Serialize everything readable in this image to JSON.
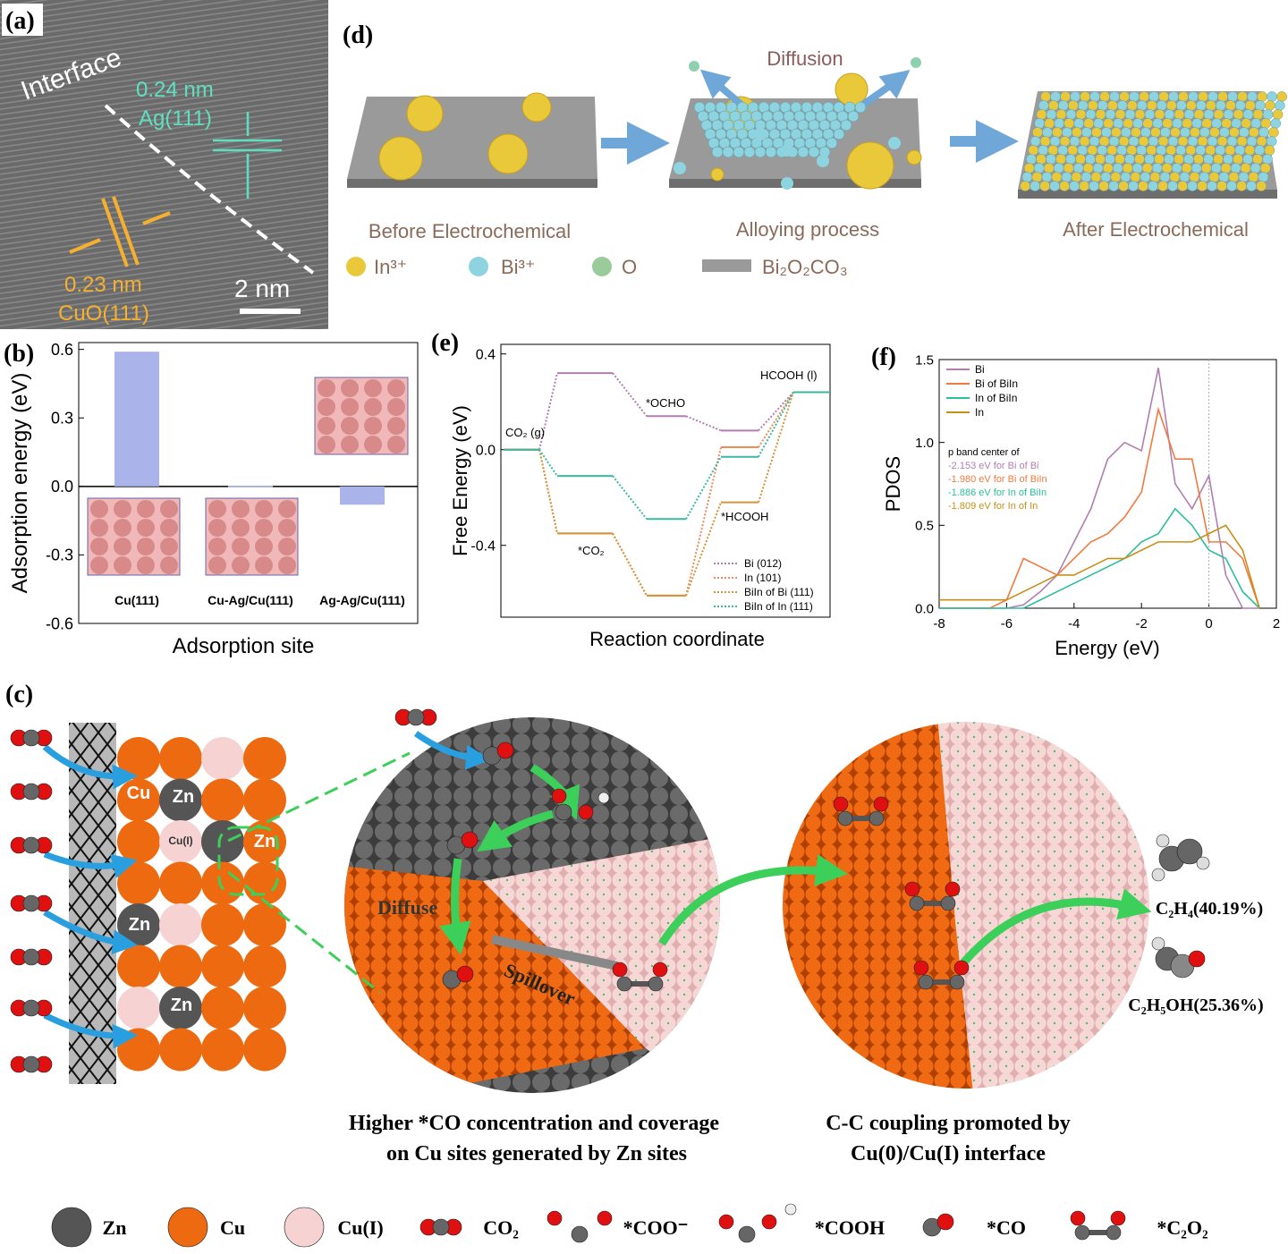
{
  "panel_a": {
    "label": "(a)",
    "interface": "Interface",
    "spacing_ag": "0.24 nm",
    "plane_ag": "Ag(111)",
    "spacing_cuo": "0.23 nm",
    "plane_cuo": "CuO(111)",
    "scale": "2 nm"
  },
  "panel_d": {
    "label": "(d)",
    "diffusion": "Diffusion",
    "stages": [
      "Before Electrochemical",
      "Alloying process",
      "After Electrochemical"
    ],
    "legend": [
      "In³⁺",
      "Bi³⁺",
      "O",
      "Bi₂O₂CO₃"
    ]
  },
  "chart_data": [
    {
      "label": "(b)",
      "type": "bar",
      "ylabel": "Adsorption energy (eV)",
      "xlabel": "Adsorption site",
      "categories": [
        "Cu(111)",
        "Cu-Ag/Cu(111)",
        "Ag-Ag/Cu(111)"
      ],
      "values": [
        0.59,
        0.003,
        -0.08
      ],
      "color": "#aab4ea",
      "ylim": [
        -0.6,
        0.63
      ],
      "yticks": [
        0.6,
        0.3,
        {
          "value": 0,
          "label": "0.0"
        },
        -0.3,
        -0.6
      ]
    },
    {
      "label": "(e)",
      "type": "step",
      "ylabel": "Free Energy (eV)",
      "xlabel": "Reaction coordinate",
      "annotations": [
        "CO₂ (g)",
        "*CO₂",
        "*OCHO",
        "*HCOOH",
        "HCOOH (l)"
      ],
      "series": [
        {
          "name": "Bi (012)",
          "color": "#b07fb0",
          "values": [
            0,
            0.32,
            0.14,
            0.08,
            0.24
          ]
        },
        {
          "name": "In (101)",
          "color": "#f08a5a",
          "values": [
            0,
            -0.35,
            -0.61,
            0.01,
            0.24
          ]
        },
        {
          "name": "BiIn of Bi (111)",
          "color": "#d4943a",
          "values": [
            0,
            -0.35,
            -0.61,
            -0.22,
            0.24
          ]
        },
        {
          "name": "BiIn of In (111)",
          "color": "#3cb8a0",
          "values": [
            0,
            -0.11,
            -0.29,
            -0.03,
            0.24
          ]
        }
      ],
      "ylim": [
        -0.7,
        0.44
      ],
      "yticks": [
        0.4,
        {
          "value": 0,
          "label": "0.0"
        },
        -0.4
      ]
    },
    {
      "label": "(f)",
      "type": "line",
      "ylabel": "PDOS",
      "xlabel": "Energy (eV)",
      "x": [
        -8,
        -7.5,
        -7,
        -6.5,
        -6,
        -5.5,
        -5,
        -4.5,
        -4,
        -3.5,
        -3,
        -2.5,
        -2,
        -1.5,
        -1,
        -0.5,
        0,
        0.5,
        1,
        1.5
      ],
      "series": [
        {
          "name": "Bi",
          "color": "#b07fb0",
          "values": [
            0,
            0,
            0,
            0,
            0,
            0.02,
            0.1,
            0.2,
            0.4,
            0.6,
            0.9,
            1.0,
            0.95,
            1.45,
            0.75,
            0.6,
            0.8,
            0.2,
            0,
            0
          ]
        },
        {
          "name": "Bi of BiIn",
          "color": "#f07a40",
          "values": [
            0,
            0,
            0,
            0,
            0.05,
            0.3,
            0.25,
            0.2,
            0.3,
            0.4,
            0.45,
            0.55,
            0.7,
            1.2,
            0.9,
            0.9,
            0.4,
            0.4,
            0.3,
            0
          ]
        },
        {
          "name": "In of BiIn",
          "color": "#2bbf9a",
          "values": [
            0,
            0,
            0,
            0,
            0,
            0,
            0.05,
            0.1,
            0.15,
            0.2,
            0.25,
            0.3,
            0.4,
            0.45,
            0.6,
            0.5,
            0.35,
            0.3,
            0.1,
            0
          ]
        },
        {
          "name": "In",
          "color": "#c8901a",
          "values": [
            0.05,
            0.05,
            0.05,
            0.05,
            0.05,
            0.1,
            0.15,
            0.2,
            0.2,
            0.25,
            0.3,
            0.3,
            0.35,
            0.4,
            0.4,
            0.4,
            0.45,
            0.5,
            0.35,
            0
          ]
        }
      ],
      "xlim": [
        -8,
        2
      ],
      "xticks": [
        -8,
        -6,
        -4,
        -2,
        0,
        2
      ],
      "ylim": [
        0,
        1.5
      ],
      "yticks": [
        {
          "value": 0,
          "label": "0.0"
        },
        0.5,
        {
          "value": 1,
          "label": "1.0"
        },
        1.5
      ],
      "vline": 0,
      "note_title": "p band center of",
      "notes": [
        {
          "text": "-2.153 eV for Bi of Bi",
          "color": "#b07fb0"
        },
        {
          "text": "-1.980 eV for Bi of BiIn",
          "color": "#f07a40"
        },
        {
          "text": "-1.886 eV for In of BiIn",
          "color": "#2bbf9a"
        },
        {
          "text": "-1.809 eV for In of In",
          "color": "#c8901a"
        }
      ]
    }
  ],
  "panel_c": {
    "label": "(c)",
    "sites": [
      "Cu",
      "Zn",
      "Cu(I)",
      "Zn",
      "Zn",
      "Zn"
    ],
    "diffuse": "Diffuse",
    "spillover": "Spillover",
    "products": [
      "C₂H₄(40.19%)",
      "C₂H₅OH(25.36%)"
    ],
    "caption_left": [
      "Higher *CO concentration and coverage",
      "on Cu sites generated by Zn sites"
    ],
    "caption_right": [
      "C-C coupling promoted by",
      "Cu(0)/Cu(I) interface"
    ],
    "legend": [
      "Zn",
      "Cu",
      "Cu(I)",
      "CO₂",
      "*COO⁻",
      "*COOH",
      "*CO",
      "*C₂O₂"
    ]
  }
}
